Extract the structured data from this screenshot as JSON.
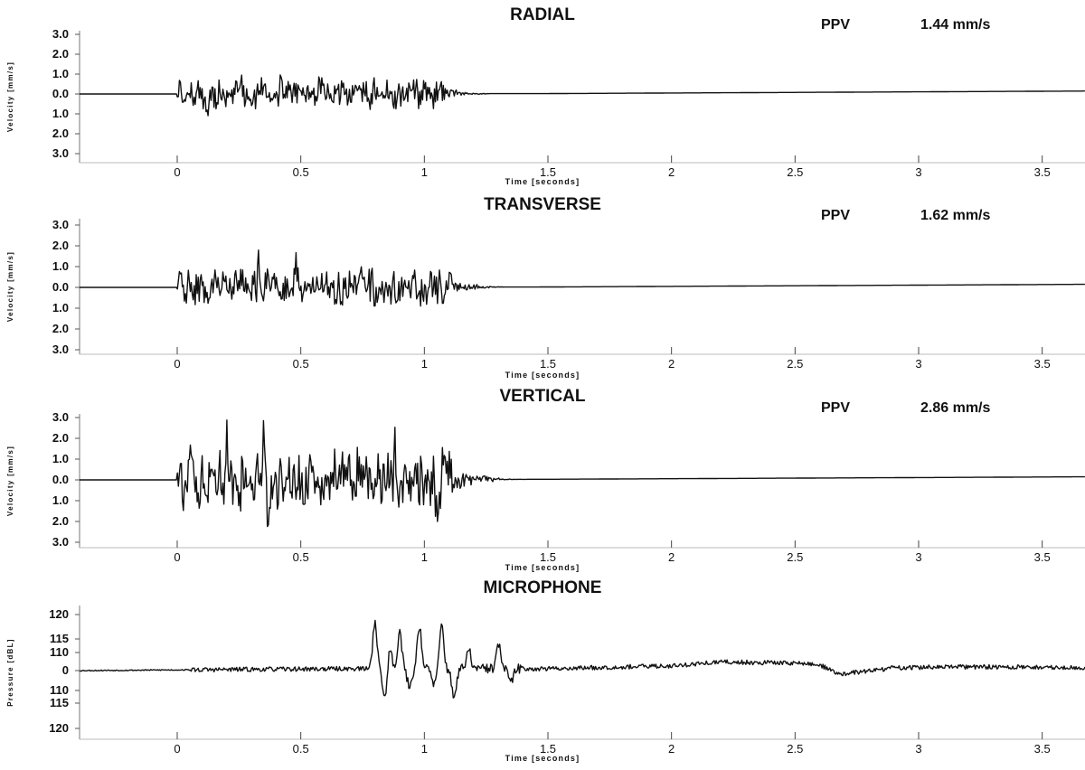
{
  "chart_data": [
    {
      "type": "line",
      "title": "RADIAL",
      "ppv_label": "PPV",
      "ppv_value": "1.44  mm/s",
      "ylabel": "Velocity [mm/s]",
      "xlabel": "Time [seconds]",
      "ytick_labels": [
        "3.0",
        "2.0",
        "1.0",
        "0.0",
        "1.0",
        "2.0",
        "3.0"
      ],
      "ytick_values": [
        3,
        2,
        1,
        0,
        -1,
        -2,
        -3
      ],
      "xtick_labels": [
        "0",
        "0.5",
        "1",
        "1.5",
        "2",
        "2.5",
        "3",
        "3.5"
      ],
      "xtick_values": [
        0,
        0.5,
        1,
        1.5,
        2,
        2.5,
        3,
        3.5
      ],
      "xlim": [
        -0.4,
        3.7
      ],
      "ylim": [
        -3.4,
        3.4
      ],
      "line_color": "#111111",
      "peak": 1.44,
      "seed": 11,
      "activity": {
        "start": 0.0,
        "end": 1.1,
        "decay_end": 1.3
      },
      "drift": [
        [
          0,
          0
        ],
        [
          1.5,
          0.02
        ],
        [
          3.7,
          0.15
        ]
      ],
      "spikes": [
        [
          0.12,
          -1.3
        ],
        [
          0.24,
          1.1
        ],
        [
          0.26,
          1.2
        ],
        [
          0.3,
          -1.1
        ],
        [
          0.42,
          0.9
        ],
        [
          0.58,
          0.8
        ]
      ]
    },
    {
      "type": "line",
      "title": "TRANSVERSE",
      "ppv_label": "PPV",
      "ppv_value": "1.62  mm/s",
      "ylabel": "Velocity [mm/s]",
      "xlabel": "Time [seconds]",
      "ytick_labels": [
        "3.0",
        "2.0",
        "1.0",
        "0.0",
        "1.0",
        "2.0",
        "3.0"
      ],
      "ytick_values": [
        3,
        2,
        1,
        0,
        -1,
        -2,
        -3
      ],
      "xtick_labels": [
        "0",
        "0.5",
        "1",
        "1.5",
        "2",
        "2.5",
        "3",
        "3.5"
      ],
      "xtick_values": [
        0,
        0.5,
        1,
        1.5,
        2,
        2.5,
        3,
        3.5
      ],
      "xlim": [
        -0.4,
        3.7
      ],
      "ylim": [
        -3.4,
        3.4
      ],
      "line_color": "#111111",
      "peak": 1.62,
      "seed": 23,
      "activity": {
        "start": 0.0,
        "end": 1.12,
        "decay_end": 1.35
      },
      "drift": [
        [
          0,
          0
        ],
        [
          1.5,
          0.02
        ],
        [
          3.7,
          0.15
        ]
      ],
      "spikes": [
        [
          0.33,
          1.35
        ],
        [
          0.48,
          1.1
        ],
        [
          0.64,
          -1.45
        ],
        [
          0.74,
          1.2
        ],
        [
          0.79,
          1.6
        ],
        [
          0.8,
          -1.4
        ]
      ]
    },
    {
      "type": "line",
      "title": "VERTICAL",
      "ppv_label": "PPV",
      "ppv_value": "2.86  mm/s",
      "ylabel": "Velocity [mm/s]",
      "xlabel": "Time [seconds]",
      "ytick_labels": [
        "3.0",
        "2.0",
        "1.0",
        "0.0",
        "1.0",
        "2.0",
        "3.0"
      ],
      "ytick_values": [
        3,
        2,
        1,
        0,
        -1,
        -2,
        -3
      ],
      "xtick_labels": [
        "0",
        "0.5",
        "1",
        "1.5",
        "2",
        "2.5",
        "3",
        "3.5"
      ],
      "xtick_values": [
        0,
        0.5,
        1,
        1.5,
        2,
        2.5,
        3,
        3.5
      ],
      "xlim": [
        -0.4,
        3.7
      ],
      "ylim": [
        -3.4,
        3.4
      ],
      "line_color": "#111111",
      "peak": 2.86,
      "seed": 37,
      "activity": {
        "start": 0.0,
        "end": 1.12,
        "decay_end": 1.4
      },
      "drift": [
        [
          0,
          0
        ],
        [
          1.5,
          0.03
        ],
        [
          3.7,
          0.15
        ]
      ],
      "spikes": [
        [
          0.09,
          -1.8
        ],
        [
          0.2,
          2.3
        ],
        [
          0.35,
          2.86
        ],
        [
          0.37,
          -2.1
        ],
        [
          0.46,
          -1.4
        ],
        [
          0.88,
          1.5
        ],
        [
          1.05,
          -1.4
        ]
      ]
    },
    {
      "type": "line",
      "title": "MICROPHONE",
      "ylabel": "Pressure [dBL]",
      "xlabel": "Time [seconds]",
      "ytick_labels": [
        "120",
        "115",
        "110",
        "0",
        "110",
        "115",
        "120"
      ],
      "ytick_values": [
        2.8,
        1.3,
        0.85,
        0,
        -0.85,
        -1.3,
        2.8
      ],
      "ytick_values_note": "",
      "xtick_labels": [
        "0",
        "0.5",
        "1",
        "1.5",
        "2",
        "2.5",
        "3",
        "3.5"
      ],
      "xtick_values": [
        0,
        0.5,
        1,
        1.5,
        2,
        2.5,
        3,
        3.5
      ],
      "xlim": [
        -0.4,
        3.7
      ],
      "ylim": [
        -3.2,
        3.1
      ],
      "line_color": "#111111",
      "seed": 53,
      "bursts": [
        [
          0.8,
          2.5
        ],
        [
          0.86,
          1.1
        ],
        [
          0.9,
          2.0
        ],
        [
          0.98,
          2.3
        ],
        [
          1.07,
          2.3
        ],
        [
          1.18,
          1.0
        ],
        [
          1.3,
          1.3
        ]
      ],
      "dips": [
        [
          0.84,
          -1.5
        ],
        [
          0.94,
          -0.9
        ],
        [
          1.04,
          -0.8
        ],
        [
          1.12,
          -1.4
        ],
        [
          1.35,
          -0.7
        ]
      ],
      "baseline": [
        [
          -0.4,
          0
        ],
        [
          0.7,
          0.1
        ],
        [
          1.5,
          0.1
        ],
        [
          2.0,
          0.25
        ],
        [
          2.2,
          0.45
        ],
        [
          2.5,
          0.4
        ],
        [
          2.6,
          0.3
        ],
        [
          2.68,
          -0.2
        ],
        [
          2.9,
          0.15
        ],
        [
          3.2,
          0.2
        ],
        [
          3.7,
          0.15
        ]
      ]
    }
  ]
}
